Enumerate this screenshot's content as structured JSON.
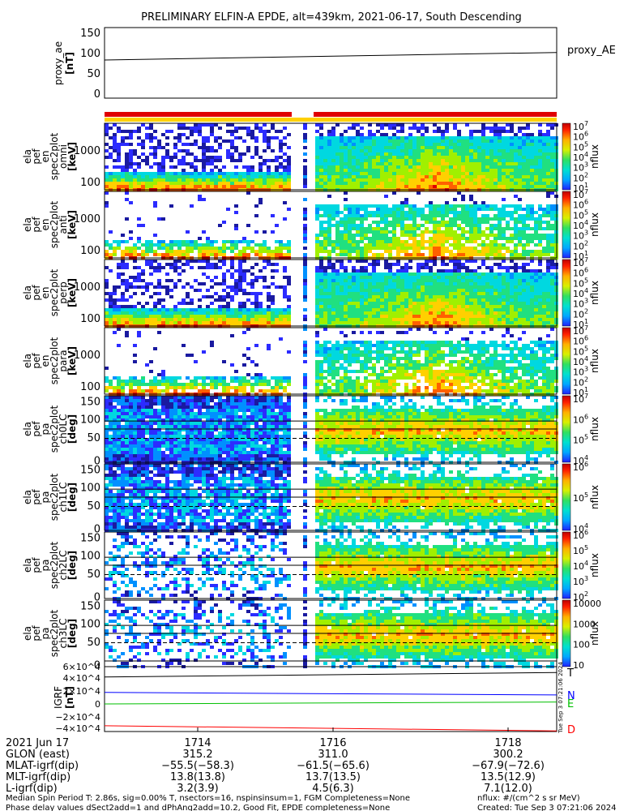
{
  "title": "PRELIMINARY ELFIN-A EPDE, alt=439km, 2021-06-17, South Descending",
  "proxy_panel": {
    "ylabel_line1": "proxy_ae",
    "ylabel_line2": "[nT]",
    "legend": "proxy_AE",
    "yticks": [
      "150",
      "100",
      "50",
      "0"
    ]
  },
  "spectrogram_panels": [
    {
      "ylabel": [
        "ela",
        "pef",
        "en",
        "spec2plot",
        "omni",
        "[keV]"
      ],
      "yticks": [
        "1000",
        "100"
      ],
      "cb_label": "nflux",
      "cb_ticks": [
        "10^7",
        "10^6",
        "10^5",
        "10^4",
        "10^3",
        "10^2",
        "10^1"
      ]
    },
    {
      "ylabel": [
        "ela",
        "pef",
        "en",
        "spec2plot",
        "anti",
        "[keV]"
      ],
      "yticks": [
        "1000",
        "100"
      ],
      "cb_label": "nflux",
      "cb_ticks": [
        "10^7",
        "10^6",
        "10^5",
        "10^4",
        "10^3",
        "10^2",
        "10^1"
      ]
    },
    {
      "ylabel": [
        "ela",
        "pef",
        "en",
        "spec2plot",
        "perp",
        "[keV]"
      ],
      "yticks": [
        "1000",
        "100"
      ],
      "cb_label": "nflux",
      "cb_ticks": [
        "10^7",
        "10^6",
        "10^5",
        "10^4",
        "10^3",
        "10^2",
        "10^1"
      ]
    },
    {
      "ylabel": [
        "ela",
        "pef",
        "en",
        "spec2plot",
        "para",
        "[keV]"
      ],
      "yticks": [
        "1000",
        "100"
      ],
      "cb_label": "nflux",
      "cb_ticks": [
        "10^7",
        "10^6",
        "10^5",
        "10^4",
        "10^3",
        "10^2",
        "10^1"
      ]
    },
    {
      "ylabel": [
        "ela",
        "pef",
        "pa",
        "spec2plot",
        "ch0LC",
        "[deg]"
      ],
      "yticks": [
        "150",
        "100",
        "50",
        "0"
      ],
      "cb_label": "nflux",
      "cb_ticks": [
        "10^7",
        "10^6",
        "10^5",
        "10^4"
      ]
    },
    {
      "ylabel": [
        "ela",
        "pef",
        "pa",
        "spec2plot",
        "ch1LC",
        "[deg]"
      ],
      "yticks": [
        "150",
        "100",
        "50",
        "0"
      ],
      "cb_label": "nflux",
      "cb_ticks": [
        "10^6",
        "10^5",
        "10^4"
      ]
    },
    {
      "ylabel": [
        "ela",
        "pef",
        "pa",
        "spec2plot",
        "ch2LC",
        "[deg]"
      ],
      "yticks": [
        "150",
        "100",
        "50",
        "0"
      ],
      "cb_label": "nflux",
      "cb_ticks": [
        "10^6",
        "10^5",
        "10^4",
        "10^3",
        "10^2"
      ]
    },
    {
      "ylabel": [
        "ela",
        "pef",
        "pa",
        "spec2plot",
        "ch3LC",
        "[deg]"
      ],
      "yticks": [
        "150",
        "100",
        "50",
        "0"
      ],
      "cb_label": "nflux",
      "cb_ticks": [
        "10000",
        "1000",
        "100",
        "10"
      ]
    }
  ],
  "igrf_panel": {
    "ylabel_line1": "IGRF",
    "ylabel_line2": "[nT]",
    "yticks": [
      "6×10^4",
      "4×10^4",
      "2×10^4",
      "0",
      "−2×10^4",
      "−4×10^4"
    ],
    "legend": [
      "T",
      "N",
      "E",
      "D"
    ],
    "series_colors": [
      "#000000",
      "#0000ff",
      "#00c000",
      "#ff0000"
    ],
    "stamp": "Tue Sep 3 07:21:06 2024"
  },
  "chart_data": [
    {
      "type": "line",
      "title": "",
      "xlabel": "",
      "ylabel": "proxy_ae [nT]",
      "ylim": [
        0,
        150
      ],
      "series": [
        {
          "name": "proxy_AE",
          "x": [
            "1712.5",
            "1718.9"
          ],
          "values": [
            81,
            97
          ]
        }
      ]
    },
    {
      "type": "heatmap",
      "title": "",
      "xlabel": "",
      "ylabel": "ela pef en spec2plot omni [keV]",
      "yscale": "log",
      "colorbar": "nflux"
    },
    {
      "type": "heatmap",
      "title": "",
      "xlabel": "",
      "ylabel": "ela pef en spec2plot anti [keV]",
      "yscale": "log",
      "colorbar": "nflux"
    },
    {
      "type": "heatmap",
      "title": "",
      "xlabel": "",
      "ylabel": "ela pef en spec2plot perp [keV]",
      "yscale": "log",
      "colorbar": "nflux"
    },
    {
      "type": "heatmap",
      "title": "",
      "xlabel": "",
      "ylabel": "ela pef en spec2plot para [keV]",
      "yscale": "log",
      "colorbar": "nflux"
    },
    {
      "type": "heatmap",
      "title": "",
      "xlabel": "",
      "ylabel": "ela pef pa spec2plot ch0LC [deg]",
      "ylim": [
        0,
        150
      ],
      "colorbar": "nflux"
    },
    {
      "type": "heatmap",
      "title": "",
      "xlabel": "",
      "ylabel": "ela pef pa spec2plot ch1LC [deg]",
      "ylim": [
        0,
        150
      ],
      "colorbar": "nflux"
    },
    {
      "type": "heatmap",
      "title": "",
      "xlabel": "",
      "ylabel": "ela pef pa spec2plot ch2LC [deg]",
      "ylim": [
        0,
        150
      ],
      "colorbar": "nflux"
    },
    {
      "type": "heatmap",
      "title": "",
      "xlabel": "",
      "ylabel": "ela pef pa spec2plot ch3LC [deg]",
      "ylim": [
        0,
        150
      ],
      "colorbar": "nflux"
    },
    {
      "type": "line",
      "title": "",
      "xlabel": "",
      "ylabel": "IGRF [nT]",
      "ylim": [
        -45000,
        65000
      ],
      "series": [
        {
          "name": "T",
          "x": [
            "1712.5",
            "1718.9"
          ],
          "values": [
            40000,
            47000
          ]
        },
        {
          "name": "N",
          "x": [
            "1712.5",
            "1718.9"
          ],
          "values": [
            16000,
            12000
          ]
        },
        {
          "name": "E",
          "x": [
            "1712.5",
            "1718.9"
          ],
          "values": [
            -2000,
            1000
          ]
        },
        {
          "name": "D",
          "x": [
            "1712.5",
            "1718.9"
          ],
          "values": [
            -36000,
            -44000
          ]
        }
      ]
    }
  ],
  "xaxis_table": {
    "rows": [
      {
        "label": "2021 Jun 17",
        "values": [
          "1714",
          "1716",
          "1718"
        ]
      },
      {
        "label": "GLON (east)",
        "values": [
          "315.2",
          "311.0",
          "300.2"
        ]
      },
      {
        "label": "MLAT-igrf(dip)",
        "values": [
          "−55.5(−58.3)",
          "−61.5(−65.6)",
          "−67.9(−72.6)"
        ]
      },
      {
        "label": "MLT-igrf(dip)",
        "values": [
          "13.8(13.8)",
          "13.7(13.5)",
          "13.5(12.9)"
        ]
      },
      {
        "label": "L-igrf(dip)",
        "values": [
          "3.2(3.9)",
          "4.5(6.3)",
          "7.1(12.0)"
        ]
      }
    ]
  },
  "footer": {
    "left_line1": "Median Spin Period T: 2.86s, sig=0.00% T, nsectors=16, nspinsinsum=1, FGM Completeness=None",
    "left_line2": "Phase delay values dSect2add=1 and dPhAng2add=10.2, Good Fit, EPDE completeness=None",
    "right_line1": "nflux: #/(cm^2 s sr MeV)",
    "right_line2": "Created: Tue Sep  3 07:21:06 2024"
  },
  "colors": {
    "bar_red": "#e00000",
    "bar_yellow": "#ffd000"
  }
}
